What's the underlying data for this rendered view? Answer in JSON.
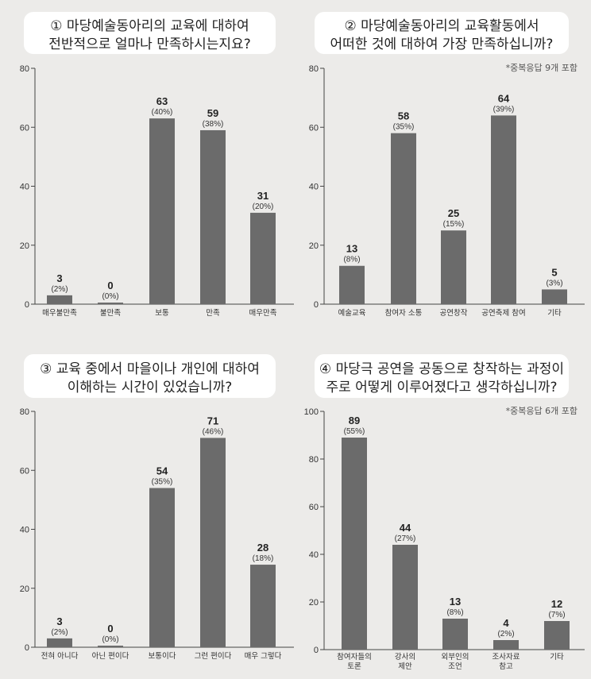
{
  "colors": {
    "background": "#ecebe9",
    "bar": "#6b6b6b",
    "panel": "#ffffff",
    "axis": "#444444"
  },
  "chart_data": [
    {
      "type": "bar",
      "title_lines": [
        "① 마당예술동아리의 교육에 대하여",
        "전반적으로 얼마나 만족하시는지요?"
      ],
      "note": "",
      "categories": [
        [
          "매우불만족"
        ],
        [
          "불만족"
        ],
        [
          "보통"
        ],
        [
          "만족"
        ],
        [
          "매우만족"
        ]
      ],
      "values": [
        3,
        0,
        63,
        59,
        31
      ],
      "percents": [
        "(2%)",
        "(0%)",
        "(40%)",
        "(38%)",
        "(20%)"
      ],
      "ylim": [
        0,
        80
      ],
      "yticks": [
        0,
        20,
        40,
        60,
        80
      ]
    },
    {
      "type": "bar",
      "title_lines": [
        "② 마당예술동아리의 교육활동에서",
        "어떠한 것에 대하여 가장 만족하십니까?"
      ],
      "note": "*중복응답  9개 포함",
      "categories": [
        [
          "예술교육"
        ],
        [
          "참여자 소통"
        ],
        [
          "공연창작"
        ],
        [
          "공연축제 참여"
        ],
        [
          "기타"
        ]
      ],
      "values": [
        13,
        58,
        25,
        64,
        5
      ],
      "percents": [
        "(8%)",
        "(35%)",
        "(15%)",
        "(39%)",
        "(3%)"
      ],
      "ylim": [
        0,
        80
      ],
      "yticks": [
        0,
        20,
        40,
        60,
        80
      ]
    },
    {
      "type": "bar",
      "title_lines": [
        "③ 교육 중에서 마을이나 개인에 대하여",
        "이해하는 시간이 있었습니까?"
      ],
      "note": "",
      "categories": [
        [
          "전혀 아니다"
        ],
        [
          "아닌 편이다"
        ],
        [
          "보통이다"
        ],
        [
          "그런 편이다"
        ],
        [
          "매우 그렇다"
        ]
      ],
      "values": [
        3,
        0,
        54,
        71,
        28
      ],
      "percents": [
        "(2%)",
        "(0%)",
        "(35%)",
        "(46%)",
        "(18%)"
      ],
      "ylim": [
        0,
        80
      ],
      "yticks": [
        0,
        20,
        40,
        60,
        80
      ]
    },
    {
      "type": "bar",
      "title_lines": [
        "④ 마당극 공연을 공동으로 창작하는 과정이",
        "주로 어떻게 이루어졌다고 생각하십니까?"
      ],
      "note": "*중복응답  6개 포함",
      "categories": [
        [
          "참여자들의",
          "토론"
        ],
        [
          "강사의",
          "제안"
        ],
        [
          "외부인의",
          "조언"
        ],
        [
          "조사자료",
          "참고"
        ],
        [
          "기타"
        ]
      ],
      "values": [
        89,
        44,
        13,
        4,
        12
      ],
      "percents": [
        "(55%)",
        "(27%)",
        "(8%)",
        "(2%)",
        "(7%)"
      ],
      "ylim": [
        0,
        100
      ],
      "yticks": [
        0,
        20,
        40,
        60,
        80,
        100
      ]
    }
  ]
}
